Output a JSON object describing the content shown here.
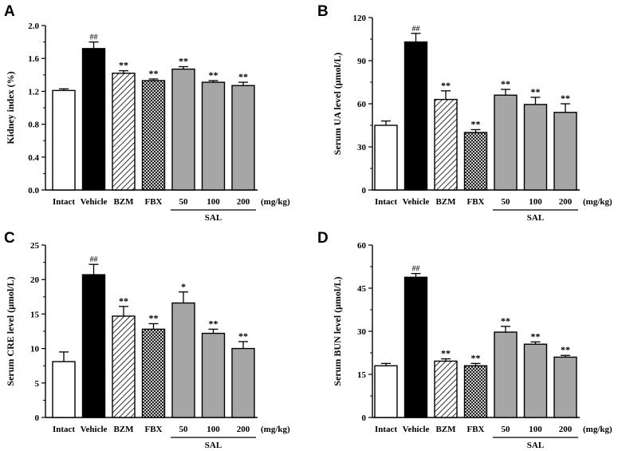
{
  "chart_data": [
    {
      "panel": "A",
      "type": "bar",
      "ylabel": "Kidney index (%)",
      "ylim": [
        0,
        2.0
      ],
      "yticks": [
        "0.0",
        "0.4",
        "0.8",
        "1.2",
        "1.6",
        "2.0"
      ],
      "categories": [
        "Intact",
        "Vehicle",
        "BZM",
        "FBX",
        "50",
        "100",
        "200"
      ],
      "values": [
        1.21,
        1.72,
        1.42,
        1.33,
        1.47,
        1.31,
        1.27
      ],
      "errors": [
        0.02,
        0.08,
        0.03,
        0.02,
        0.03,
        0.02,
        0.04
      ],
      "significance": [
        "",
        "##",
        "**",
        "**",
        "**",
        "**",
        "**"
      ],
      "patterns": [
        "white",
        "black",
        "diag",
        "cross",
        "gray",
        "gray",
        "gray"
      ],
      "unit_label": "(mg/kg)",
      "group_label": "SAL"
    },
    {
      "panel": "B",
      "type": "bar",
      "ylabel": "Serum UA level (μmol/L)",
      "ylim": [
        0,
        120
      ],
      "yticks": [
        "0",
        "30",
        "60",
        "90",
        "120"
      ],
      "categories": [
        "Intact",
        "Vehicle",
        "BZM",
        "FBX",
        "50",
        "100",
        "200"
      ],
      "values": [
        45,
        103,
        63,
        40,
        66,
        59.5,
        54
      ],
      "errors": [
        3,
        6,
        6,
        2,
        4,
        5,
        6
      ],
      "significance": [
        "",
        "##",
        "**",
        "**",
        "**",
        "**",
        "**"
      ],
      "patterns": [
        "white",
        "black",
        "diag",
        "cross",
        "gray",
        "gray",
        "gray"
      ],
      "unit_label": "(mg/kg)",
      "group_label": "SAL"
    },
    {
      "panel": "C",
      "type": "bar",
      "ylabel": "Serum CRE level (μmol/L)",
      "ylim": [
        0,
        25
      ],
      "yticks": [
        "0",
        "5",
        "10",
        "15",
        "20",
        "25"
      ],
      "categories": [
        "Intact",
        "Vehicle",
        "BZM",
        "FBX",
        "50",
        "100",
        "200"
      ],
      "values": [
        8.1,
        20.7,
        14.7,
        12.8,
        16.6,
        12.2,
        10.0
      ],
      "errors": [
        1.4,
        1.5,
        1.4,
        0.8,
        1.6,
        0.6,
        1.0
      ],
      "significance": [
        "",
        "##",
        "**",
        "**",
        "*",
        "**",
        "**"
      ],
      "patterns": [
        "white",
        "black",
        "diag",
        "cross",
        "gray",
        "gray",
        "gray"
      ],
      "unit_label": "(mg/kg)",
      "group_label": "SAL"
    },
    {
      "panel": "D",
      "type": "bar",
      "ylabel": "Serum BUN level (μmol/L)",
      "ylim": [
        0,
        60
      ],
      "yticks": [
        "0",
        "15",
        "30",
        "45",
        "60"
      ],
      "categories": [
        "Intact",
        "Vehicle",
        "BZM",
        "FBX",
        "50",
        "100",
        "200"
      ],
      "values": [
        18,
        48.8,
        19.6,
        18.0,
        29.7,
        25.5,
        21.0
      ],
      "errors": [
        0.8,
        1.3,
        0.8,
        0.8,
        2.0,
        0.8,
        0.6
      ],
      "significance": [
        "",
        "##",
        "**",
        "**",
        "**",
        "**",
        "**"
      ],
      "patterns": [
        "white",
        "black",
        "diag",
        "cross",
        "gray",
        "gray",
        "gray"
      ],
      "unit_label": "(mg/kg)",
      "group_label": "SAL"
    }
  ]
}
